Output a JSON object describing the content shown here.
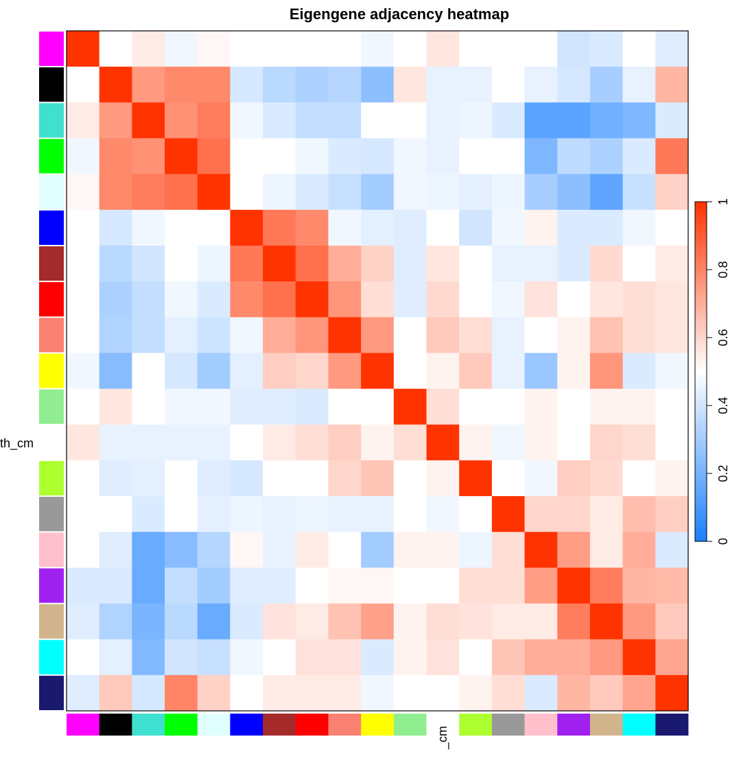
{
  "chart_data": {
    "type": "heatmap",
    "title": "Eigengene adjacency heatmap",
    "row_axis_label": "th_cm",
    "col_axis_label": "_cm",
    "modules": [
      "magenta",
      "black",
      "turquoise",
      "green",
      "lightcyan",
      "blue",
      "brown",
      "red",
      "salmon",
      "yellow",
      "lightgreen",
      "white",
      "greenyellow",
      "grey60",
      "pink",
      "purple",
      "tan",
      "cyan",
      "midnightblue"
    ],
    "module_colors": [
      "#ff00ff",
      "#000000",
      "#40e0d0",
      "#00ff00",
      "#e0ffff",
      "#0000ff",
      "#a52a2a",
      "#ff0000",
      "#fa8072",
      "#ffff00",
      "#90ee90",
      "#ffffff",
      "#adff2f",
      "#999999",
      "#ffc0cb",
      "#a020f0",
      "#d2b48c",
      "#00ffff",
      "#191970"
    ],
    "values": [
      [
        1.0,
        0.5,
        0.55,
        0.47,
        0.52,
        0.5,
        0.5,
        0.5,
        0.5,
        0.47,
        0.5,
        0.56,
        0.5,
        0.5,
        0.5,
        0.4,
        0.42,
        0.5,
        0.43
      ],
      [
        0.5,
        1.0,
        0.75,
        0.79,
        0.79,
        0.41,
        0.35,
        0.32,
        0.34,
        0.25,
        0.56,
        0.45,
        0.45,
        0.5,
        0.45,
        0.41,
        0.31,
        0.45,
        0.68
      ],
      [
        0.55,
        0.75,
        1.0,
        0.77,
        0.82,
        0.47,
        0.42,
        0.37,
        0.37,
        0.5,
        0.5,
        0.45,
        0.46,
        0.42,
        0.14,
        0.14,
        0.19,
        0.22,
        0.42
      ],
      [
        0.47,
        0.79,
        0.77,
        1.0,
        0.85,
        0.5,
        0.5,
        0.47,
        0.42,
        0.41,
        0.47,
        0.45,
        0.5,
        0.5,
        0.22,
        0.36,
        0.32,
        0.42,
        0.83
      ],
      [
        0.52,
        0.79,
        0.82,
        0.85,
        1.0,
        0.5,
        0.46,
        0.42,
        0.38,
        0.3,
        0.47,
        0.46,
        0.44,
        0.46,
        0.31,
        0.25,
        0.15,
        0.38,
        0.61
      ],
      [
        0.5,
        0.41,
        0.47,
        0.5,
        0.5,
        1.0,
        0.83,
        0.79,
        0.47,
        0.44,
        0.43,
        0.5,
        0.4,
        0.47,
        0.53,
        0.42,
        0.42,
        0.47,
        0.5
      ],
      [
        0.5,
        0.35,
        0.4,
        0.5,
        0.46,
        0.83,
        1.0,
        0.85,
        0.7,
        0.61,
        0.43,
        0.56,
        0.5,
        0.45,
        0.45,
        0.42,
        0.59,
        0.5,
        0.55
      ],
      [
        0.5,
        0.32,
        0.37,
        0.47,
        0.42,
        0.79,
        0.85,
        1.0,
        0.76,
        0.58,
        0.43,
        0.59,
        0.5,
        0.47,
        0.57,
        0.5,
        0.56,
        0.58,
        0.56
      ],
      [
        0.5,
        0.33,
        0.37,
        0.44,
        0.39,
        0.47,
        0.7,
        0.76,
        1.0,
        0.75,
        0.5,
        0.63,
        0.58,
        0.45,
        0.5,
        0.53,
        0.65,
        0.58,
        0.56
      ],
      [
        0.47,
        0.24,
        0.5,
        0.41,
        0.3,
        0.44,
        0.62,
        0.6,
        0.75,
        1.0,
        0.5,
        0.53,
        0.63,
        0.45,
        0.28,
        0.53,
        0.76,
        0.42,
        0.47
      ],
      [
        0.5,
        0.56,
        0.5,
        0.47,
        0.47,
        0.43,
        0.43,
        0.42,
        0.5,
        0.5,
        1.0,
        0.58,
        0.5,
        0.5,
        0.53,
        0.5,
        0.53,
        0.53,
        0.5
      ],
      [
        0.56,
        0.45,
        0.45,
        0.45,
        0.45,
        0.5,
        0.55,
        0.58,
        0.62,
        0.53,
        0.58,
        1.0,
        0.53,
        0.47,
        0.53,
        0.5,
        0.6,
        0.58,
        0.5
      ],
      [
        0.5,
        0.43,
        0.44,
        0.5,
        0.43,
        0.41,
        0.5,
        0.5,
        0.6,
        0.64,
        0.5,
        0.53,
        1.0,
        0.5,
        0.47,
        0.62,
        0.59,
        0.5,
        0.53
      ],
      [
        0.5,
        0.5,
        0.42,
        0.5,
        0.44,
        0.46,
        0.45,
        0.46,
        0.45,
        0.45,
        0.5,
        0.47,
        0.5,
        1.0,
        0.6,
        0.6,
        0.55,
        0.66,
        0.62
      ],
      [
        0.5,
        0.43,
        0.17,
        0.24,
        0.34,
        0.52,
        0.45,
        0.55,
        0.5,
        0.3,
        0.53,
        0.53,
        0.46,
        0.58,
        1.0,
        0.74,
        0.55,
        0.7,
        0.42
      ],
      [
        0.42,
        0.42,
        0.17,
        0.37,
        0.3,
        0.43,
        0.43,
        0.5,
        0.52,
        0.52,
        0.5,
        0.5,
        0.58,
        0.58,
        0.74,
        1.0,
        0.82,
        0.68,
        0.67
      ],
      [
        0.43,
        0.33,
        0.21,
        0.35,
        0.17,
        0.42,
        0.57,
        0.55,
        0.65,
        0.73,
        0.53,
        0.58,
        0.57,
        0.55,
        0.55,
        0.82,
        1.0,
        0.75,
        0.63
      ],
      [
        0.5,
        0.44,
        0.23,
        0.4,
        0.38,
        0.47,
        0.5,
        0.57,
        0.57,
        0.42,
        0.53,
        0.57,
        0.5,
        0.64,
        0.7,
        0.7,
        0.75,
        1.0,
        0.72
      ],
      [
        0.43,
        0.63,
        0.41,
        0.8,
        0.61,
        0.5,
        0.55,
        0.55,
        0.55,
        0.47,
        0.5,
        0.5,
        0.53,
        0.58,
        0.42,
        0.68,
        0.63,
        0.72,
        1.0
      ]
    ],
    "colorbar": {
      "min": 0,
      "max": 1,
      "ticks": [
        "0",
        "0.2",
        "0.4",
        "0.6",
        "0.8",
        "1"
      ]
    },
    "colormap": [
      "#1a7fff",
      "#ffffff",
      "#ff3300"
    ]
  }
}
